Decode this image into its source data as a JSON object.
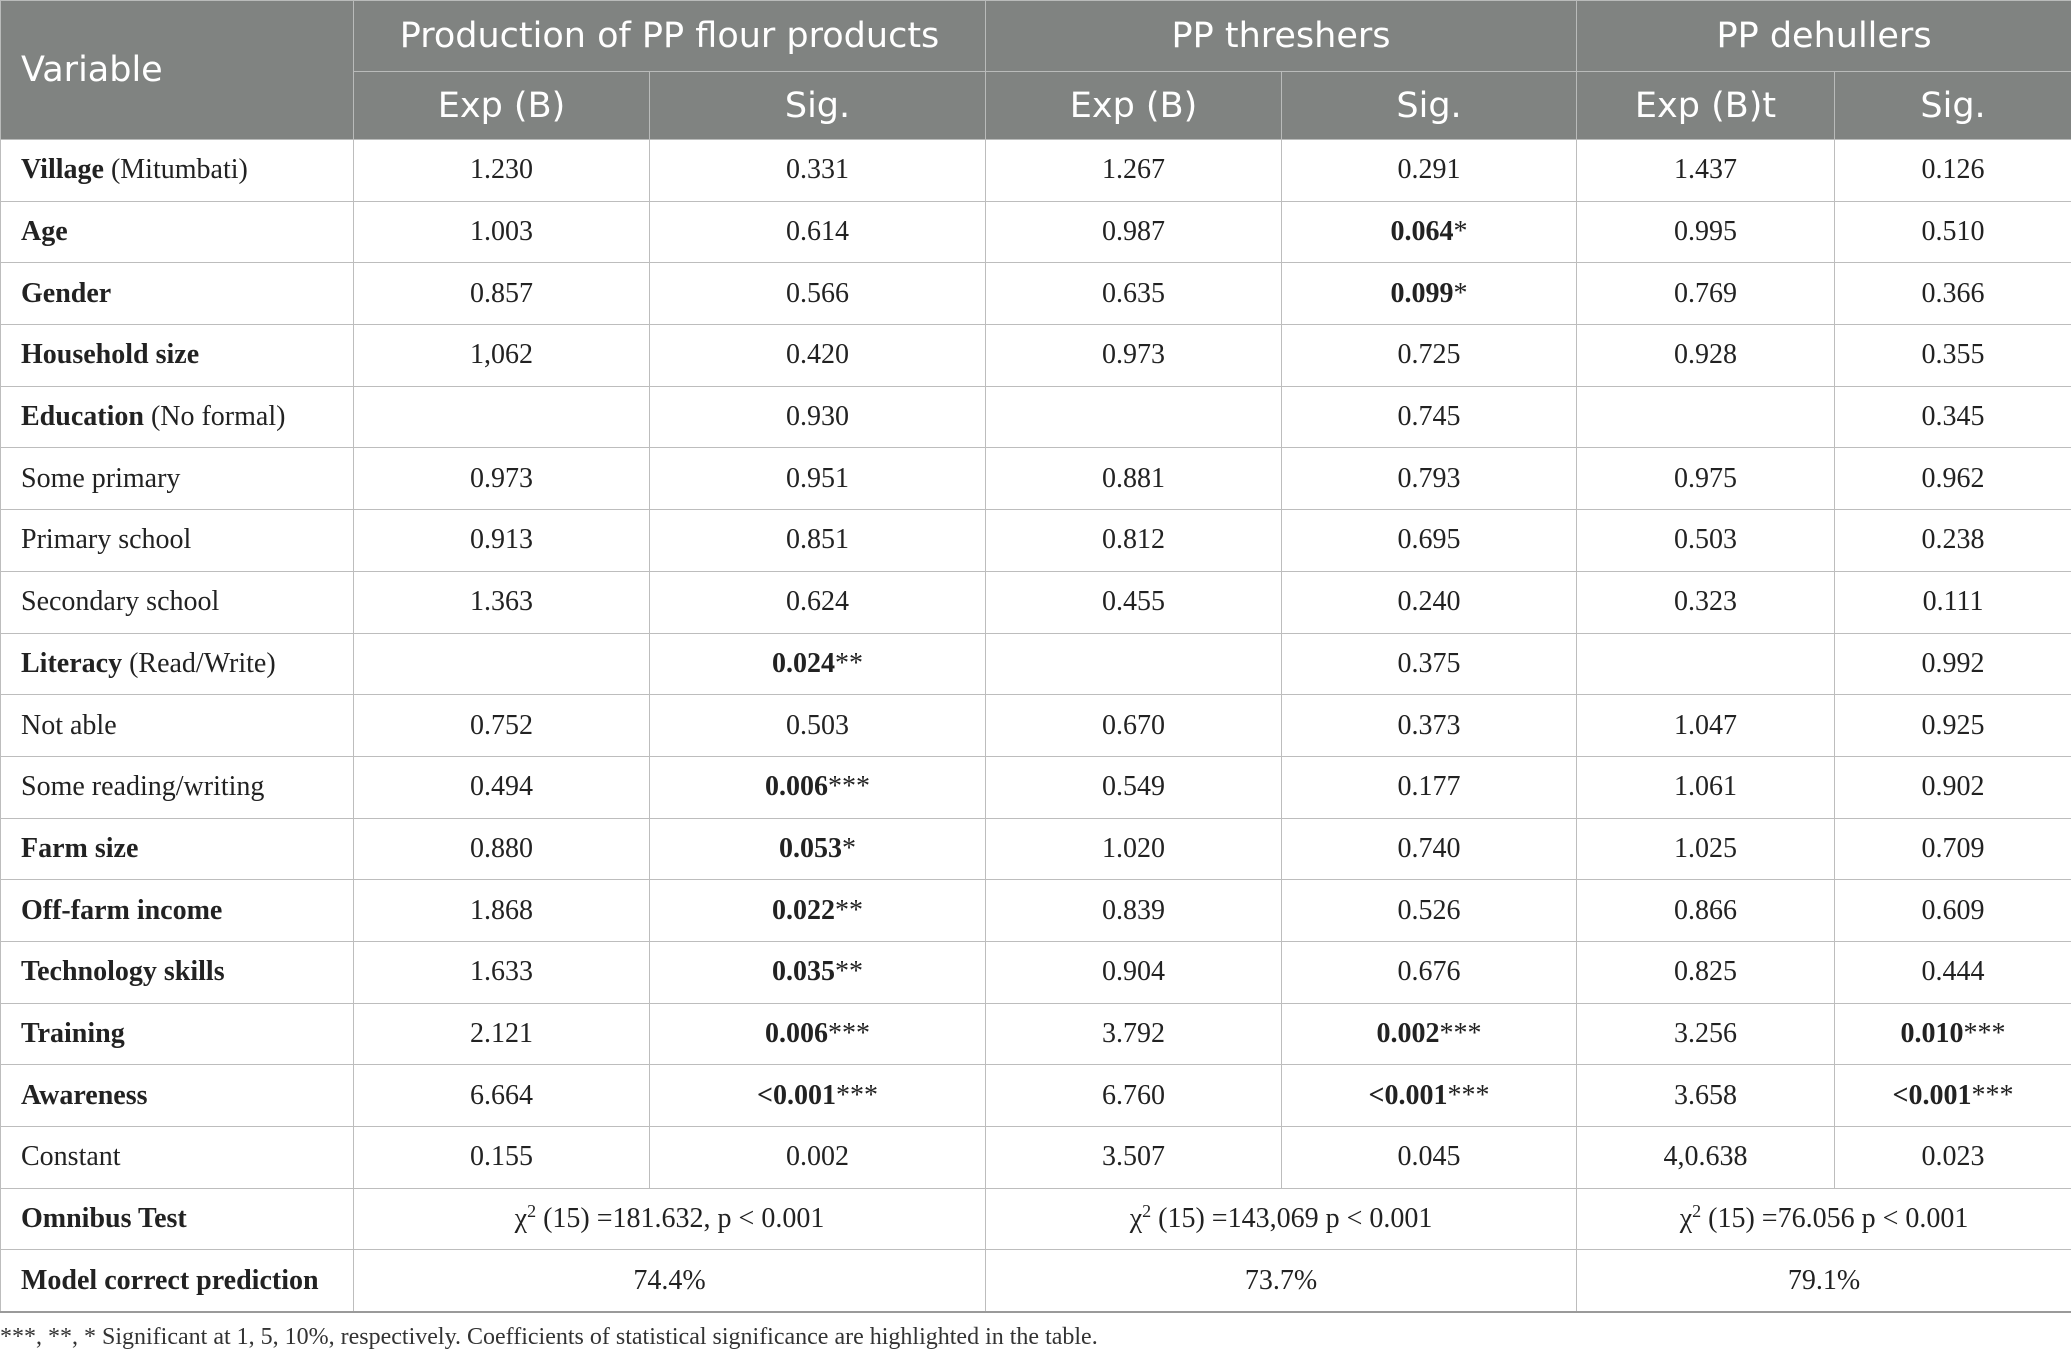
{
  "table": {
    "header": {
      "variable": "Variable",
      "groups": [
        "Production of PP flour products",
        "PP threshers",
        "PP dehullers"
      ],
      "subcolumns": [
        "Exp (B)",
        "Sig.",
        "Exp (B)",
        "Sig.",
        "Exp (B)t",
        "Sig."
      ]
    },
    "rows": [
      {
        "label": "Village",
        "label_suffix": " (Mitumbati)",
        "bold": true,
        "cells": [
          {
            "v": "1.230"
          },
          {
            "v": "0.331"
          },
          {
            "v": "1.267"
          },
          {
            "v": "0.291"
          },
          {
            "v": "1.437"
          },
          {
            "v": "0.126"
          }
        ]
      },
      {
        "label": "Age",
        "label_suffix": "",
        "bold": true,
        "cells": [
          {
            "v": "1.003"
          },
          {
            "v": "0.614"
          },
          {
            "v": "0.987"
          },
          {
            "v": "0.064",
            "b": true,
            "s": "*"
          },
          {
            "v": "0.995"
          },
          {
            "v": "0.510"
          }
        ]
      },
      {
        "label": "Gender",
        "label_suffix": "",
        "bold": true,
        "cells": [
          {
            "v": "0.857"
          },
          {
            "v": "0.566"
          },
          {
            "v": "0.635"
          },
          {
            "v": "0.099",
            "b": true,
            "s": "*"
          },
          {
            "v": "0.769"
          },
          {
            "v": "0.366"
          }
        ]
      },
      {
        "label": "Household size",
        "label_suffix": "",
        "bold": true,
        "cells": [
          {
            "v": "1,062"
          },
          {
            "v": "0.420"
          },
          {
            "v": "0.973"
          },
          {
            "v": "0.725"
          },
          {
            "v": "0.928"
          },
          {
            "v": "0.355"
          }
        ]
      },
      {
        "label": "Education",
        "label_suffix": " (No formal)",
        "bold": true,
        "cells": [
          {
            "v": ""
          },
          {
            "v": "0.930"
          },
          {
            "v": ""
          },
          {
            "v": "0.745"
          },
          {
            "v": ""
          },
          {
            "v": "0.345"
          }
        ]
      },
      {
        "label": "Some primary",
        "label_suffix": "",
        "bold": false,
        "cells": [
          {
            "v": "0.973"
          },
          {
            "v": "0.951"
          },
          {
            "v": "0.881"
          },
          {
            "v": "0.793"
          },
          {
            "v": "0.975"
          },
          {
            "v": "0.962"
          }
        ]
      },
      {
        "label": "Primary school",
        "label_suffix": "",
        "bold": false,
        "cells": [
          {
            "v": "0.913"
          },
          {
            "v": "0.851"
          },
          {
            "v": "0.812"
          },
          {
            "v": "0.695"
          },
          {
            "v": "0.503"
          },
          {
            "v": "0.238"
          }
        ]
      },
      {
        "label": "Secondary school",
        "label_suffix": "",
        "bold": false,
        "cells": [
          {
            "v": "1.363"
          },
          {
            "v": "0.624"
          },
          {
            "v": "0.455"
          },
          {
            "v": "0.240"
          },
          {
            "v": "0.323"
          },
          {
            "v": "0.111"
          }
        ]
      },
      {
        "label": "Literacy",
        "label_suffix": " (Read/Write)",
        "bold": true,
        "cells": [
          {
            "v": ""
          },
          {
            "v": "0.024",
            "b": true,
            "s": "**"
          },
          {
            "v": ""
          },
          {
            "v": "0.375"
          },
          {
            "v": ""
          },
          {
            "v": "0.992"
          }
        ]
      },
      {
        "label": "Not able",
        "label_suffix": "",
        "bold": false,
        "cells": [
          {
            "v": "0.752"
          },
          {
            "v": "0.503"
          },
          {
            "v": "0.670"
          },
          {
            "v": "0.373"
          },
          {
            "v": "1.047"
          },
          {
            "v": "0.925"
          }
        ]
      },
      {
        "label": "Some reading/writing",
        "label_suffix": "",
        "bold": false,
        "cells": [
          {
            "v": "0.494"
          },
          {
            "v": "0.006",
            "b": true,
            "s": "***"
          },
          {
            "v": "0.549"
          },
          {
            "v": "0.177"
          },
          {
            "v": "1.061"
          },
          {
            "v": "0.902"
          }
        ]
      },
      {
        "label": "Farm size",
        "label_suffix": "",
        "bold": true,
        "cells": [
          {
            "v": "0.880"
          },
          {
            "v": "0.053",
            "b": true,
            "s": "*"
          },
          {
            "v": "1.020"
          },
          {
            "v": "0.740"
          },
          {
            "v": "1.025"
          },
          {
            "v": "0.709"
          }
        ]
      },
      {
        "label": "Off-farm income",
        "label_suffix": "",
        "bold": true,
        "cells": [
          {
            "v": "1.868"
          },
          {
            "v": "0.022",
            "b": true,
            "s": "**"
          },
          {
            "v": "0.839"
          },
          {
            "v": "0.526"
          },
          {
            "v": "0.866"
          },
          {
            "v": "0.609"
          }
        ]
      },
      {
        "label": "Technology skills",
        "label_suffix": "",
        "bold": true,
        "cells": [
          {
            "v": "1.633"
          },
          {
            "v": "0.035",
            "b": true,
            "s": "**"
          },
          {
            "v": "0.904"
          },
          {
            "v": "0.676"
          },
          {
            "v": "0.825"
          },
          {
            "v": "0.444"
          }
        ]
      },
      {
        "label": "Training",
        "label_suffix": "",
        "bold": true,
        "cells": [
          {
            "v": "2.121"
          },
          {
            "v": "0.006",
            "b": true,
            "s": "***"
          },
          {
            "v": "3.792"
          },
          {
            "v": "0.002",
            "b": true,
            "s": "***"
          },
          {
            "v": "3.256"
          },
          {
            "v": "0.010",
            "b": true,
            "s": "***"
          }
        ]
      },
      {
        "label": "Awareness",
        "label_suffix": "",
        "bold": true,
        "cells": [
          {
            "v": "6.664"
          },
          {
            "v": "<0.001",
            "b": true,
            "s": "***"
          },
          {
            "v": "6.760"
          },
          {
            "v": "<0.001",
            "b": true,
            "s": "***"
          },
          {
            "v": "3.658"
          },
          {
            "v": "<0.001",
            "b": true,
            "s": "***"
          }
        ]
      },
      {
        "label": "Constant",
        "label_suffix": "",
        "bold": false,
        "cells": [
          {
            "v": "0.155"
          },
          {
            "v": "0.002"
          },
          {
            "v": "3.507"
          },
          {
            "v": "0.045"
          },
          {
            "v": "4,0.638"
          },
          {
            "v": "0.023"
          }
        ]
      }
    ],
    "omnibus": {
      "label": "Omnibus Test",
      "values": [
        {
          "pre": "χ",
          "sup": "2",
          "post": " (15) =181.632, p < 0.001"
        },
        {
          "pre": "χ",
          "sup": "2",
          "post": " (15) =143,069 p < 0.001"
        },
        {
          "pre": "χ",
          "sup": "2",
          "post": " (15) =76.056 p < 0.001"
        }
      ]
    },
    "prediction": {
      "label": "Model correct prediction",
      "values": [
        "74.4%",
        "73.7%",
        "79.1%"
      ]
    }
  },
  "footnote": "***, **, * Significant at 1, 5, 10%, respectively. Coefficients of statistical significance are highlighted in the table."
}
